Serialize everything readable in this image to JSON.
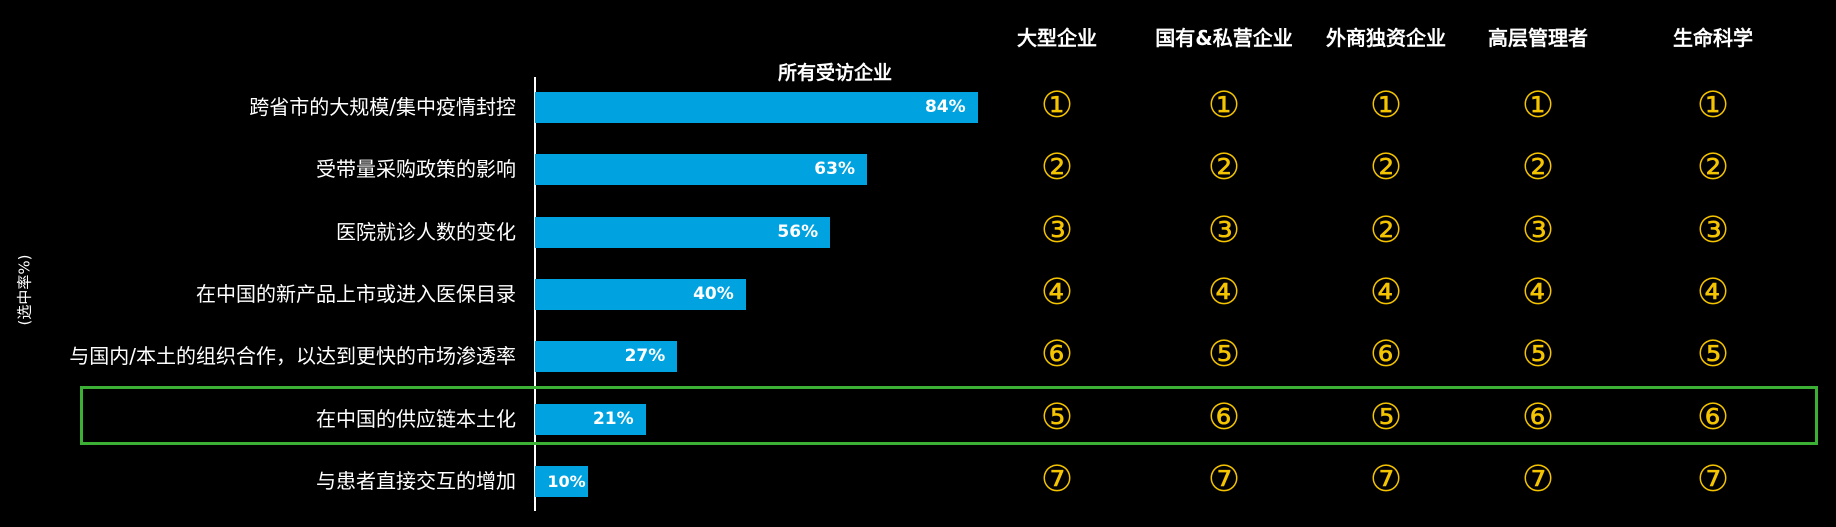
{
  "chart_data": {
    "type": "bar",
    "orientation": "horizontal",
    "title": "所有受访企业",
    "ylabel": "(选中率%)",
    "categories": [
      "跨省市的大规模/集中疫情封控",
      "受带量采购政策的影响",
      "医院就诊人数的变化",
      "在中国的新产品上市或进入医保目录",
      "与国内/本土的组织合作，以达到更快的市场渗透率",
      "在中国的供应链本土化",
      "与患者直接交互的增加"
    ],
    "values": [
      84,
      63,
      56,
      40,
      27,
      21,
      10
    ],
    "value_labels": [
      "84%",
      "63%",
      "56%",
      "40%",
      "27%",
      "21%",
      "10%"
    ],
    "xlim": [
      0,
      100
    ],
    "bar_color": "#00a3e0",
    "rank_table": {
      "columns": [
        "大型企业",
        "国有&私营企业",
        "外商独资企业",
        "高层管理者",
        "生命科学"
      ],
      "ranks": [
        [
          "①",
          "①",
          "①",
          "①",
          "①"
        ],
        [
          "②",
          "②",
          "②",
          "②",
          "②"
        ],
        [
          "③",
          "③",
          "②",
          "③",
          "③"
        ],
        [
          "④",
          "④",
          "④",
          "④",
          "④"
        ],
        [
          "⑥",
          "⑤",
          "⑥",
          "⑤",
          "⑤"
        ],
        [
          "⑤",
          "⑥",
          "⑤",
          "⑥",
          "⑥"
        ],
        [
          "⑦",
          "⑦",
          "⑦",
          "⑦",
          "⑦"
        ]
      ],
      "highlighted_cells": [
        [
          5,
          0
        ],
        [
          5,
          2
        ]
      ],
      "rank_color": "#f5c400",
      "highlight_fill": "#1a2e6b"
    },
    "highlighted_row": 5,
    "highlight_border_color": "#3cb034"
  }
}
